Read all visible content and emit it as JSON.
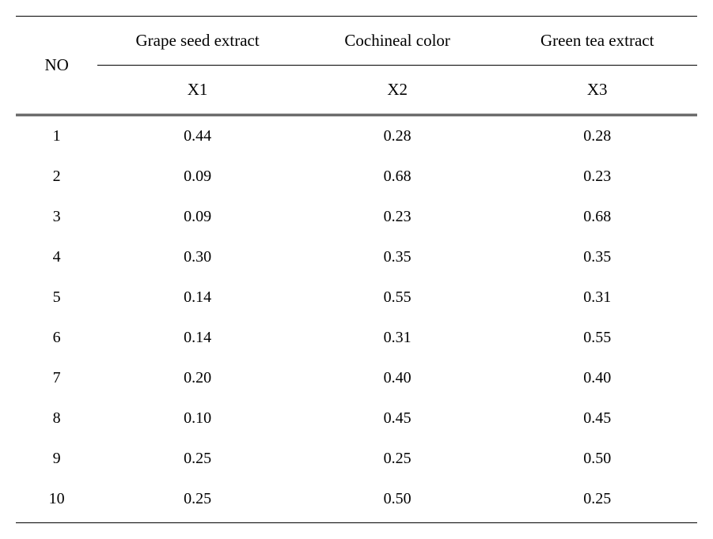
{
  "table": {
    "columns": {
      "no": {
        "header": "NO",
        "sub": "",
        "width_pct": 12
      },
      "c1": {
        "header": "Grape seed extract",
        "sub": "X1",
        "width_pct": 29
      },
      "c2": {
        "header": "Cochineal color",
        "sub": "X2",
        "width_pct": 29
      },
      "c3": {
        "header": "Green tea extract",
        "sub": "X3",
        "width_pct": 30
      }
    },
    "rows": [
      {
        "no": "1",
        "x1": "0.44",
        "x2": "0.28",
        "x3": "0.28"
      },
      {
        "no": "2",
        "x1": "0.09",
        "x2": "0.68",
        "x3": "0.23"
      },
      {
        "no": "3",
        "x1": "0.09",
        "x2": "0.23",
        "x3": "0.68"
      },
      {
        "no": "4",
        "x1": "0.30",
        "x2": "0.35",
        "x3": "0.35"
      },
      {
        "no": "5",
        "x1": "0.14",
        "x2": "0.55",
        "x3": "0.31"
      },
      {
        "no": "6",
        "x1": "0.14",
        "x2": "0.31",
        "x3": "0.55"
      },
      {
        "no": "7",
        "x1": "0.20",
        "x2": "0.40",
        "x3": "0.40"
      },
      {
        "no": "8",
        "x1": "0.10",
        "x2": "0.45",
        "x3": "0.45"
      },
      {
        "no": "9",
        "x1": "0.25",
        "x2": "0.25",
        "x3": "0.50"
      },
      {
        "no": "10",
        "x1": "0.25",
        "x2": "0.50",
        "x3": "0.25"
      }
    ],
    "style": {
      "font_family": "Times New Roman",
      "header_fontsize": 21,
      "body_fontsize": 20,
      "text_color": "#000000",
      "background_color": "#ffffff",
      "border_color": "#000000",
      "outer_border_width": 1.5,
      "double_rule_width": 3,
      "row_padding_y": 14,
      "header_padding_y": 18
    }
  }
}
